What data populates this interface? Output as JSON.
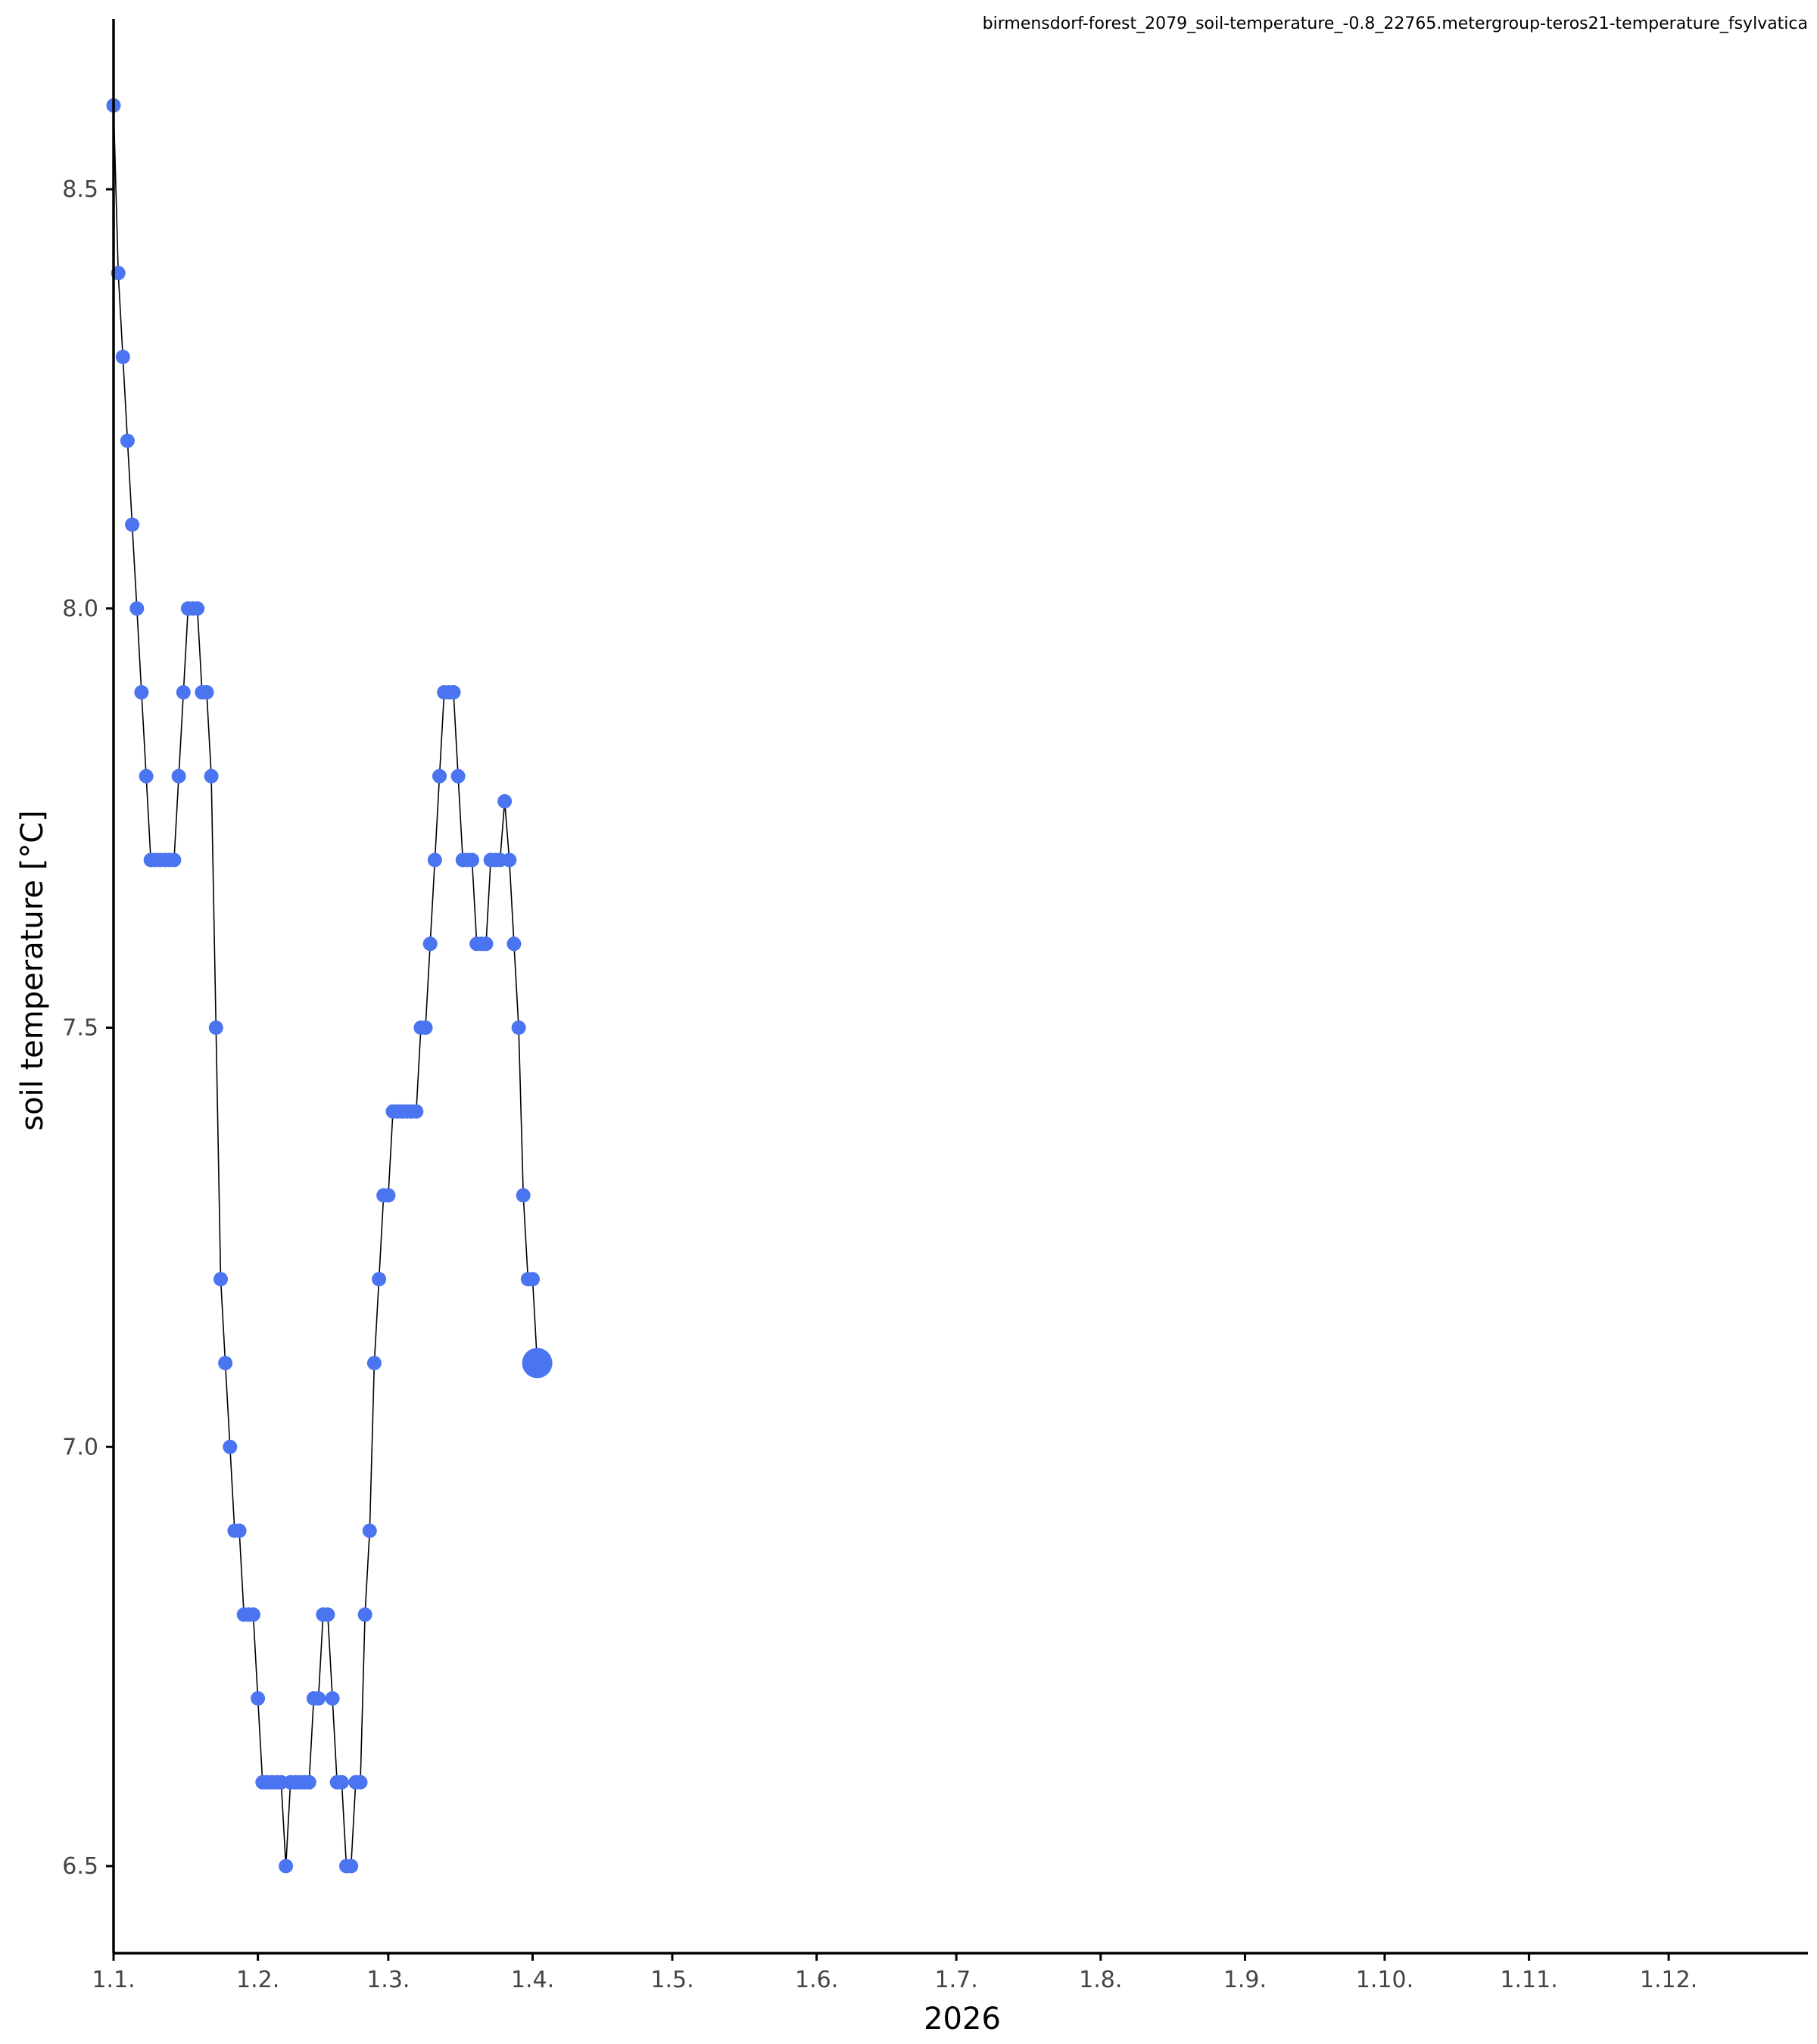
{
  "page": {
    "background": "#ffffff"
  },
  "chart_data": {
    "type": "line",
    "title": "birmensdorf-forest_2079_soil-temperature_-0.8_22765.metergroup-teros21-temperature_fsylvatica",
    "xlabel": "2026",
    "ylabel": "soil temperature [°C]",
    "x_tick_labels": [
      "1.1.",
      "1.2.",
      "1.3.",
      "1.4.",
      "1.5.",
      "1.6.",
      "1.7.",
      "1.8.",
      "1.9.",
      "1.10.",
      "1.11.",
      "1.12."
    ],
    "y_tick_labels": [
      "6.5",
      "7.0",
      "7.5",
      "8.0",
      "8.5"
    ],
    "y_ticks": [
      6.5,
      7.0,
      7.5,
      8.0,
      8.5
    ],
    "ylim": [
      6.4,
      8.7
    ],
    "xlim": [
      "2026-01-01",
      "2026-12-31"
    ],
    "grid": false,
    "legend": "none",
    "colors": {
      "points": "#4a74f0",
      "line": "#000000",
      "axis": "#000000",
      "tick_label": "#444444"
    },
    "last_point_highlighted": true,
    "series": [
      {
        "x": [
          "2026-01-01",
          "2026-01-02",
          "2026-01-03",
          "2026-01-04",
          "2026-01-05",
          "2026-01-06",
          "2026-01-07",
          "2026-01-08",
          "2026-01-09",
          "2026-01-10",
          "2026-01-11",
          "2026-01-12",
          "2026-01-13",
          "2026-01-14",
          "2026-01-15",
          "2026-01-16",
          "2026-01-17",
          "2026-01-18",
          "2026-01-19",
          "2026-01-20",
          "2026-01-21",
          "2026-01-22",
          "2026-01-23",
          "2026-01-24",
          "2026-01-25",
          "2026-01-26",
          "2026-01-27",
          "2026-01-28",
          "2026-01-29",
          "2026-01-30",
          "2026-01-31",
          "2026-02-01",
          "2026-02-02",
          "2026-02-03",
          "2026-02-04",
          "2026-02-05",
          "2026-02-06",
          "2026-02-07",
          "2026-02-08",
          "2026-02-09",
          "2026-02-10",
          "2026-02-11",
          "2026-02-12",
          "2026-02-13",
          "2026-02-14",
          "2026-02-15",
          "2026-02-16",
          "2026-02-17",
          "2026-02-18",
          "2026-02-19",
          "2026-02-20",
          "2026-02-21",
          "2026-02-22",
          "2026-02-23",
          "2026-02-24",
          "2026-02-25",
          "2026-02-26",
          "2026-02-27",
          "2026-02-28",
          "2026-03-01",
          "2026-03-02",
          "2026-03-03",
          "2026-03-04",
          "2026-03-05",
          "2026-03-06",
          "2026-03-07",
          "2026-03-08",
          "2026-03-09",
          "2026-03-10",
          "2026-03-11",
          "2026-03-12",
          "2026-03-13",
          "2026-03-14",
          "2026-03-15",
          "2026-03-16",
          "2026-03-17",
          "2026-03-18",
          "2026-03-19",
          "2026-03-20",
          "2026-03-21",
          "2026-03-22",
          "2026-03-23",
          "2026-03-24",
          "2026-03-25",
          "2026-03-26",
          "2026-03-27",
          "2026-03-28",
          "2026-03-29",
          "2026-03-30",
          "2026-03-31",
          "2026-04-01",
          "2026-04-02"
        ],
        "y": [
          8.6,
          8.4,
          8.3,
          8.2,
          8.1,
          8.0,
          7.9,
          7.8,
          7.7,
          7.7,
          7.7,
          7.7,
          7.7,
          7.7,
          7.8,
          7.9,
          8.0,
          8.0,
          8.0,
          7.9,
          7.9,
          7.8,
          7.5,
          7.2,
          7.1,
          7.0,
          6.9,
          6.9,
          6.8,
          6.8,
          6.8,
          6.7,
          6.6,
          6.6,
          6.6,
          6.6,
          6.6,
          6.5,
          6.6,
          6.6,
          6.6,
          6.6,
          6.6,
          6.7,
          6.7,
          6.8,
          6.8,
          6.7,
          6.6,
          6.6,
          6.5,
          6.5,
          6.6,
          6.6,
          6.8,
          6.9,
          7.1,
          7.2,
          7.3,
          7.3,
          7.4,
          7.4,
          7.4,
          7.4,
          7.4,
          7.4,
          7.5,
          7.5,
          7.6,
          7.7,
          7.8,
          7.9,
          7.9,
          7.9,
          7.8,
          7.7,
          7.7,
          7.7,
          7.6,
          7.6,
          7.6,
          7.7,
          7.7,
          7.7,
          7.77,
          7.7,
          7.6,
          7.5,
          7.3,
          7.2,
          7.2,
          7.1
        ]
      }
    ]
  }
}
